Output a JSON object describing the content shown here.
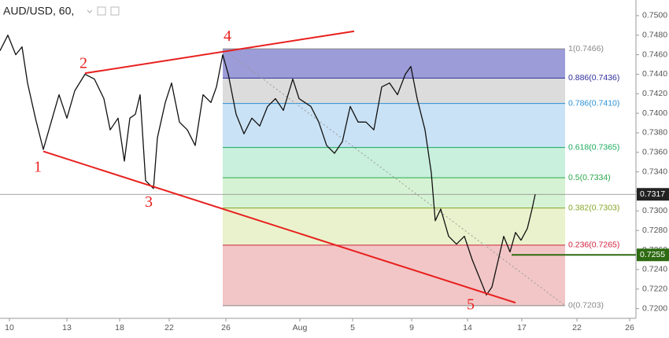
{
  "chart_data": {
    "type": "line",
    "title": "AUD/USD, 60,",
    "color": "#111111",
    "x": [
      -12,
      -2,
      8,
      16,
      23,
      33,
      43,
      53,
      63,
      73,
      83,
      96,
      108,
      120,
      128,
      138,
      146,
      153,
      160,
      166,
      173,
      183,
      188,
      198,
      206,
      216,
      226,
      236,
      246,
      256,
      263,
      271,
      278,
      288,
      298,
      308,
      318,
      328,
      338,
      348,
      360,
      368,
      383,
      393,
      403,
      413,
      423,
      433,
      443,
      453,
      463,
      473,
      483,
      493,
      503,
      510,
      518,
      528,
      536,
      541,
      548,
      558,
      568,
      578,
      588,
      598,
      606,
      613,
      620,
      628,
      636,
      643,
      650,
      658,
      664,
      668
    ],
    "values": [
      0.7464,
      0.748,
      0.746,
      0.7468,
      0.7431,
      0.7395,
      0.7363,
      0.7391,
      0.7419,
      0.7395,
      0.7423,
      0.744,
      0.7435,
      0.7415,
      0.7383,
      0.7395,
      0.7351,
      0.7395,
      0.7399,
      0.7419,
      0.7331,
      0.7323,
      0.7375,
      0.7411,
      0.7431,
      0.7391,
      0.7383,
      0.7367,
      0.7419,
      0.7411,
      0.7427,
      0.746,
      0.744,
      0.7399,
      0.7379,
      0.7395,
      0.7387,
      0.7407,
      0.7415,
      0.7403,
      0.7435,
      0.7415,
      0.7407,
      0.7391,
      0.7367,
      0.7359,
      0.7371,
      0.7407,
      0.7391,
      0.7391,
      0.7383,
      0.7427,
      0.7431,
      0.7419,
      0.744,
      0.7448,
      0.7415,
      0.7383,
      0.7339,
      0.729,
      0.7302,
      0.7274,
      0.7266,
      0.7274,
      0.725,
      0.723,
      0.7214,
      0.7222,
      0.7246,
      0.7274,
      0.7258,
      0.7278,
      0.727,
      0.7282,
      0.7302,
      0.7317
    ],
    "xlim": [
      -12,
      796
    ],
    "ylim": [
      0.719,
      0.7516
    ],
    "xticks": [
      {
        "value": 0,
        "label": "10"
      },
      {
        "value": 73,
        "label": "13"
      },
      {
        "value": 140,
        "label": "18"
      },
      {
        "value": 203,
        "label": "22"
      },
      {
        "value": 275,
        "label": "26"
      },
      {
        "value": 369,
        "label": "Aug"
      },
      {
        "value": 436,
        "label": "5"
      },
      {
        "value": 511,
        "label": "9"
      },
      {
        "value": 582,
        "label": "14"
      },
      {
        "value": 651,
        "label": "17"
      },
      {
        "value": 721,
        "label": "22"
      },
      {
        "value": 788,
        "label": "26"
      }
    ],
    "yticks": [
      {
        "value": 0.72,
        "label": "0.7200"
      },
      {
        "value": 0.722,
        "label": "0.7220"
      },
      {
        "value": 0.724,
        "label": "0.7240"
      },
      {
        "value": 0.726,
        "label": "0.7260"
      },
      {
        "value": 0.728,
        "label": "0.7280"
      },
      {
        "value": 0.73,
        "label": "0.7300"
      },
      {
        "value": 0.732,
        "label": "0.7320"
      },
      {
        "value": 0.734,
        "label": "0.7340"
      },
      {
        "value": 0.736,
        "label": "0.7360"
      },
      {
        "value": 0.738,
        "label": "0.7380"
      },
      {
        "value": 0.74,
        "label": "0.7400"
      },
      {
        "value": 0.742,
        "label": "0.7420"
      },
      {
        "value": 0.744,
        "label": "0.7440"
      },
      {
        "value": 0.746,
        "label": "0.7460"
      },
      {
        "value": 0.748,
        "label": "0.7480"
      },
      {
        "value": 0.75,
        "label": "0.7500"
      }
    ],
    "fib_x": [
      271,
      706
    ],
    "fib_levels": [
      {
        "label": "1(0.7466)",
        "price": 0.7466,
        "color": "#888888",
        "fill": "#9c9cd8"
      },
      {
        "label": "0.886(0.7436)",
        "price": 0.7436,
        "color": "#2e2e9a",
        "fill": "#dcdcdc"
      },
      {
        "label": "0.786(0.7410)",
        "price": 0.741,
        "color": "#2a8fd6",
        "fill": "#c9e2f5"
      },
      {
        "label": "0.618(0.7365)",
        "price": 0.7365,
        "color": "#18a85a",
        "fill": "#c8f0dd"
      },
      {
        "label": "0.5(0.7334)",
        "price": 0.7334,
        "color": "#2aa84a",
        "fill": "#d6f2d4"
      },
      {
        "label": "0.382(0.7303)",
        "price": 0.7303,
        "color": "#86a526",
        "fill": "#e9f2cc"
      },
      {
        "label": "0.236(0.7265)",
        "price": 0.7265,
        "color": "#d0213d",
        "fill": "#f2c6c6"
      },
      {
        "label": "0(0.7203)",
        "price": 0.7203,
        "color": "#888888"
      }
    ],
    "trendlines": [
      {
        "x": [
          96,
          438
        ],
        "price": [
          0.7441,
          0.7484
        ],
        "color": "#e8201e"
      },
      {
        "x": [
          43,
          643
        ],
        "price": [
          0.7361,
          0.7206
        ],
        "color": "#e8201e"
      }
    ],
    "wave_labels": [
      {
        "text": "1",
        "x": 36,
        "price": 0.7344
      },
      {
        "text": "2",
        "x": 94,
        "price": 0.745
      },
      {
        "text": "3",
        "x": 177,
        "price": 0.7308
      },
      {
        "text": "4",
        "x": 277,
        "price": 0.7478
      },
      {
        "text": "5",
        "x": 586,
        "price": 0.7203
      }
    ],
    "current_price": 0.7317,
    "alert_line": {
      "price": 0.7255,
      "x_start": 638,
      "color": "#2e6b12"
    }
  }
}
